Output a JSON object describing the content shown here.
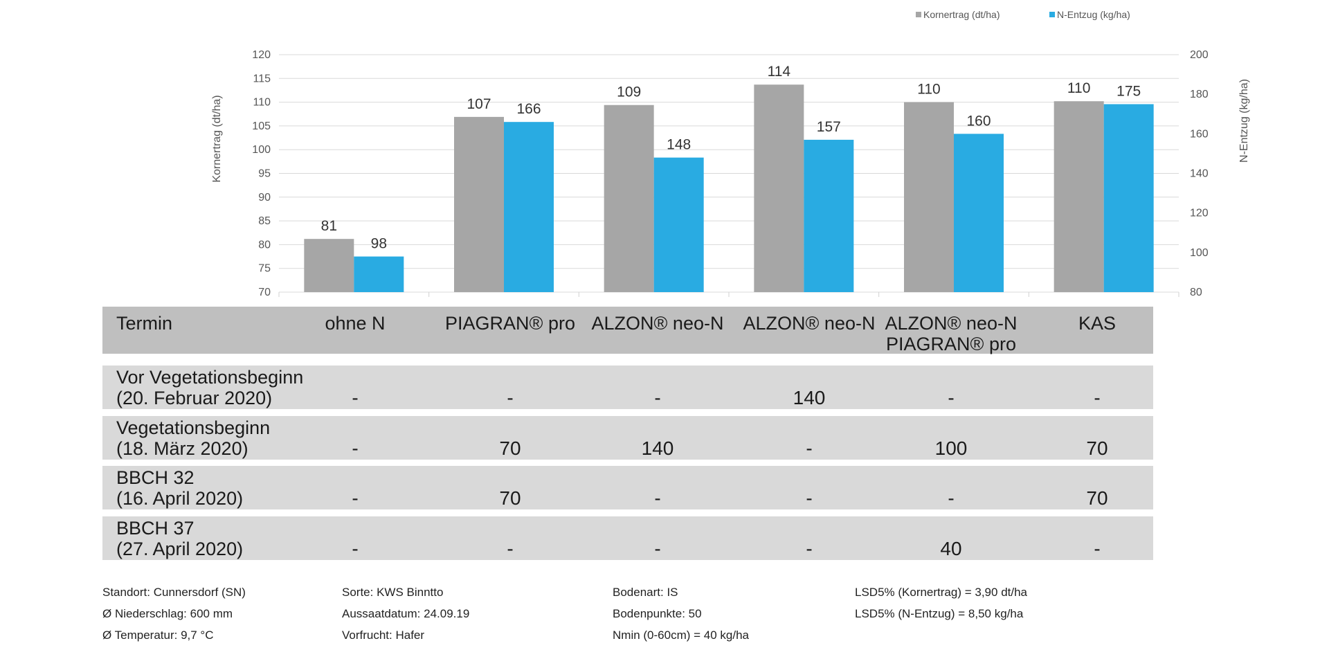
{
  "chart_data": {
    "type": "bar",
    "categories": [
      "ohne N",
      "PIAGRAN® pro",
      "ALZON® neo-N",
      "ALZON® neo-N",
      "ALZON® neo-N PIAGRAN® pro",
      "KAS"
    ],
    "series": [
      {
        "name": "Kornertrag (dt/ha)",
        "axis": "left",
        "color": "#a6a6a6",
        "values": [
          81.2,
          106.9,
          109.4,
          113.7,
          110.0,
          110.2
        ],
        "labels": [
          "81",
          "107",
          "109",
          "114",
          "110",
          "110"
        ]
      },
      {
        "name": "N-Entzug (kg/ha)",
        "axis": "right",
        "color": "#29abe2",
        "values": [
          98,
          166,
          148,
          157,
          160,
          175
        ],
        "labels": [
          "98",
          "166",
          "148",
          "157",
          "160",
          "175"
        ]
      }
    ],
    "ylabel": "Kornertrag (dt/ha)",
    "ylim": [
      70,
      120
    ],
    "yticks": [
      "70",
      "75",
      "80",
      "85",
      "90",
      "95",
      "100",
      "105",
      "110",
      "115",
      "120"
    ],
    "y2label": "N-Entzug (kg/ha)",
    "y2lim": [
      80,
      200
    ],
    "y2ticks": [
      "80",
      "100",
      "120",
      "140",
      "160",
      "180",
      "200"
    ],
    "grid": true,
    "legend": "top-right"
  },
  "table": {
    "header": {
      "label": "Termin",
      "columns": [
        [
          "ohne N"
        ],
        [
          "PIAGRAN® pro"
        ],
        [
          "ALZON® neo-N"
        ],
        [
          "ALZON® neo-N"
        ],
        [
          "ALZON® neo-N",
          "PIAGRAN® pro"
        ],
        [
          "KAS"
        ]
      ]
    },
    "rows": [
      {
        "label1": "Vor Vegetationsbeginn",
        "label2": "(20. Februar 2020)",
        "values": [
          "-",
          "-",
          "-",
          "140",
          "-",
          "-"
        ]
      },
      {
        "label1": "Vegetationsbeginn",
        "label2": "(18. März 2020)",
        "values": [
          "-",
          "70",
          "140",
          "-",
          "100",
          "70"
        ]
      },
      {
        "label1": "BBCH 32",
        "label2": "(16. April 2020)",
        "values": [
          "-",
          "70",
          "-",
          "-",
          "-",
          "70"
        ]
      },
      {
        "label1": "BBCH 37",
        "label2": "(27. April 2020)",
        "values": [
          "-",
          "-",
          "-",
          "-",
          "40",
          "-"
        ]
      }
    ]
  },
  "footer": {
    "col1": [
      "Standort: Cunnersdorf (SN)",
      "Ø Niederschlag: 600 mm",
      "Ø Temperatur: 9,7 °C"
    ],
    "col2": [
      "Sorte: KWS Binntto",
      "Aussaatdatum: 24.09.19",
      "Vorfrucht: Hafer"
    ],
    "col3": [
      "Bodenart: IS",
      "Bodenpunkte: 50",
      "Nmin (0-60cm) = 40 kg/ha"
    ],
    "col4": [
      "LSD5% (Kornertrag) = 3,90 dt/ha",
      "LSD5% (N-Entzug) = 8,50 kg/ha"
    ]
  }
}
